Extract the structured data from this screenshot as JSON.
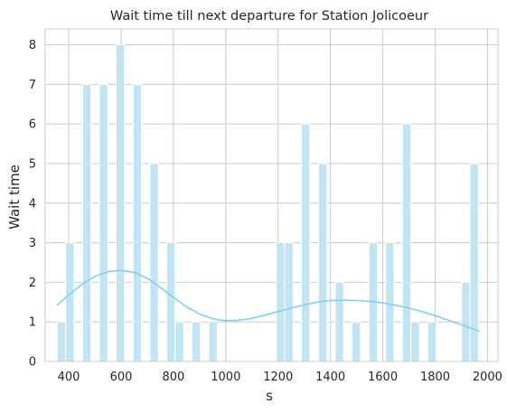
{
  "chart_data": {
    "type": "bar",
    "title": "Wait time till next departure for Station Jolicoeur",
    "xlabel": "s",
    "ylabel": "Wait time",
    "xlim": [
      310,
      2040
    ],
    "ylim": [
      0,
      8.4
    ],
    "xticks": [
      "400",
      "600",
      "800",
      "1000",
      "1200",
      "1400",
      "1600",
      "1800",
      "2000"
    ],
    "xtick_values": [
      400,
      600,
      800,
      1000,
      1200,
      1400,
      1600,
      1800,
      2000
    ],
    "yticks": [
      "0",
      "1",
      "2",
      "3",
      "4",
      "5",
      "6",
      "7",
      "8"
    ],
    "ytick_values": [
      0,
      1,
      2,
      3,
      4,
      5,
      6,
      7,
      8
    ],
    "grid": true,
    "bin_width": 32.2,
    "bins": [
      {
        "x": 372,
        "count": 1
      },
      {
        "x": 404,
        "count": 3
      },
      {
        "x": 469,
        "count": 7
      },
      {
        "x": 533,
        "count": 7
      },
      {
        "x": 597,
        "count": 8
      },
      {
        "x": 662,
        "count": 7
      },
      {
        "x": 726,
        "count": 5
      },
      {
        "x": 790,
        "count": 3
      },
      {
        "x": 823,
        "count": 1
      },
      {
        "x": 887,
        "count": 1
      },
      {
        "x": 951,
        "count": 1
      },
      {
        "x": 1209,
        "count": 3
      },
      {
        "x": 1241,
        "count": 3
      },
      {
        "x": 1305,
        "count": 6
      },
      {
        "x": 1370,
        "count": 5
      },
      {
        "x": 1434,
        "count": 2
      },
      {
        "x": 1498,
        "count": 1
      },
      {
        "x": 1563,
        "count": 3
      },
      {
        "x": 1627,
        "count": 3
      },
      {
        "x": 1691,
        "count": 6
      },
      {
        "x": 1724,
        "count": 1
      },
      {
        "x": 1788,
        "count": 1
      },
      {
        "x": 1917,
        "count": 2
      },
      {
        "x": 1949,
        "count": 5
      }
    ],
    "kde": {
      "x": [
        355,
        400,
        450,
        500,
        550,
        600,
        650,
        700,
        750,
        800,
        850,
        900,
        950,
        1000,
        1050,
        1100,
        1150,
        1200,
        1250,
        1300,
        1350,
        1400,
        1450,
        1500,
        1550,
        1600,
        1650,
        1700,
        1750,
        1800,
        1850,
        1900,
        1950,
        1970
      ],
      "y": [
        1.42,
        1.68,
        1.95,
        2.15,
        2.27,
        2.3,
        2.25,
        2.1,
        1.87,
        1.62,
        1.38,
        1.2,
        1.08,
        1.03,
        1.04,
        1.09,
        1.17,
        1.26,
        1.35,
        1.43,
        1.5,
        1.54,
        1.55,
        1.54,
        1.52,
        1.48,
        1.42,
        1.35,
        1.26,
        1.16,
        1.04,
        0.93,
        0.81,
        0.76
      ]
    },
    "colors": {
      "bar_fill": "#c3e5f3",
      "bar_edge": "#ffffff",
      "kde_line": "#87ceeb",
      "grid": "#cccccc",
      "axes_edge": "#cccccc"
    }
  }
}
